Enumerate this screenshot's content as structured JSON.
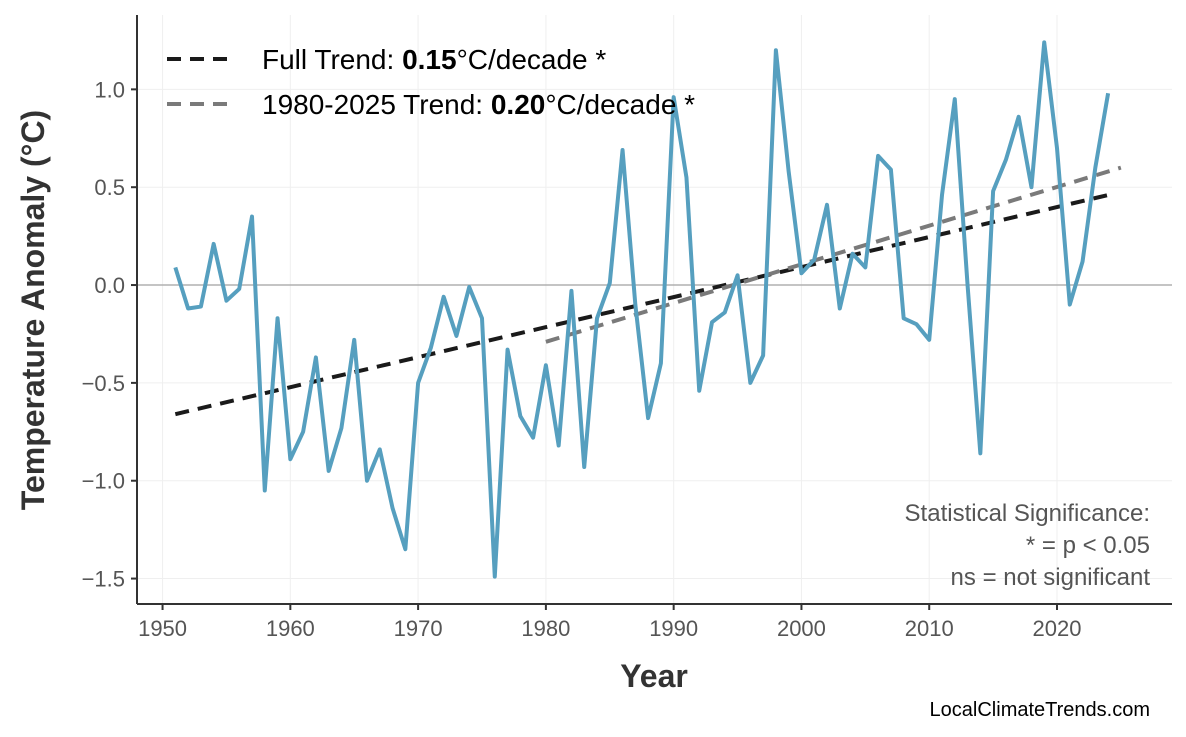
{
  "chart_data": {
    "type": "line",
    "title": "",
    "xlabel": "Year",
    "ylabel": "Temperature Anomaly (°C)",
    "xlim": [
      1948,
      2029
    ],
    "ylim": [
      -1.63,
      1.38
    ],
    "xticks": [
      1950,
      1960,
      1970,
      1980,
      1990,
      2000,
      2010,
      2020
    ],
    "yticks": [
      -1.5,
      -1.0,
      -0.5,
      0.0,
      0.5,
      1.0
    ],
    "ytick_labels": [
      "−1.5",
      "−1.0",
      "−0.5",
      "0.0",
      "0.5",
      "1.0"
    ],
    "grid": true,
    "legend_position": "top-left",
    "series": [
      {
        "color": "#569fbf",
        "x": [
          1951,
          1952,
          1953,
          1954,
          1955,
          1956,
          1957,
          1958,
          1959,
          1960,
          1961,
          1962,
          1963,
          1964,
          1965,
          1966,
          1967,
          1968,
          1969,
          1970,
          1971,
          1972,
          1973,
          1974,
          1975,
          1976,
          1977,
          1978,
          1979,
          1980,
          1981,
          1982,
          1983,
          1984,
          1985,
          1986,
          1987,
          1988,
          1989,
          1990,
          1991,
          1992,
          1993,
          1994,
          1995,
          1996,
          1997,
          1998,
          1999,
          2000,
          2001,
          2002,
          2003,
          2004,
          2005,
          2006,
          2007,
          2008,
          2009,
          2010,
          2011,
          2012,
          2013,
          2014,
          2015,
          2016,
          2017,
          2018,
          2019,
          2020,
          2021,
          2022,
          2023,
          2024
        ],
        "y": [
          0.09,
          -0.12,
          -0.11,
          0.21,
          -0.08,
          -0.02,
          0.35,
          -1.05,
          -0.17,
          -0.89,
          -0.75,
          -0.37,
          -0.95,
          -0.73,
          -0.28,
          -1.0,
          -0.84,
          -1.14,
          -1.35,
          -0.5,
          -0.32,
          -0.06,
          -0.26,
          -0.01,
          -0.17,
          -1.49,
          -0.33,
          -0.67,
          -0.78,
          -0.41,
          -0.82,
          -0.03,
          -0.93,
          -0.17,
          0.01,
          0.69,
          -0.1,
          -0.68,
          -0.4,
          0.96,
          0.55,
          -0.54,
          -0.19,
          -0.14,
          0.05,
          -0.5,
          -0.36,
          1.2,
          0.58,
          0.06,
          0.13,
          0.41,
          -0.12,
          0.16,
          0.09,
          0.66,
          0.59,
          -0.17,
          -0.2,
          -0.28,
          0.46,
          0.95,
          0.0,
          -0.86,
          0.48,
          0.64,
          0.86,
          0.5,
          1.24,
          0.7,
          -0.1,
          0.12,
          0.6,
          0.98
        ]
      }
    ],
    "trends": [
      {
        "label_prefix": "Full Trend: ",
        "value": "0.15",
        "label_suffix": "°C/decade *",
        "color": "#1a1a1a",
        "x": [
          1951,
          2024
        ],
        "y": [
          -0.66,
          0.46
        ]
      },
      {
        "label_prefix": "1980-2025 Trend: ",
        "value": "0.20",
        "label_suffix": "°C/decade *",
        "color": "#7a7a7a",
        "x": [
          1980,
          2025
        ],
        "y": [
          -0.29,
          0.6
        ]
      }
    ],
    "annotation": [
      "Statistical Significance:",
      "* = p < 0.05",
      "ns = not significant"
    ],
    "credit": "LocalClimateTrends.com"
  }
}
